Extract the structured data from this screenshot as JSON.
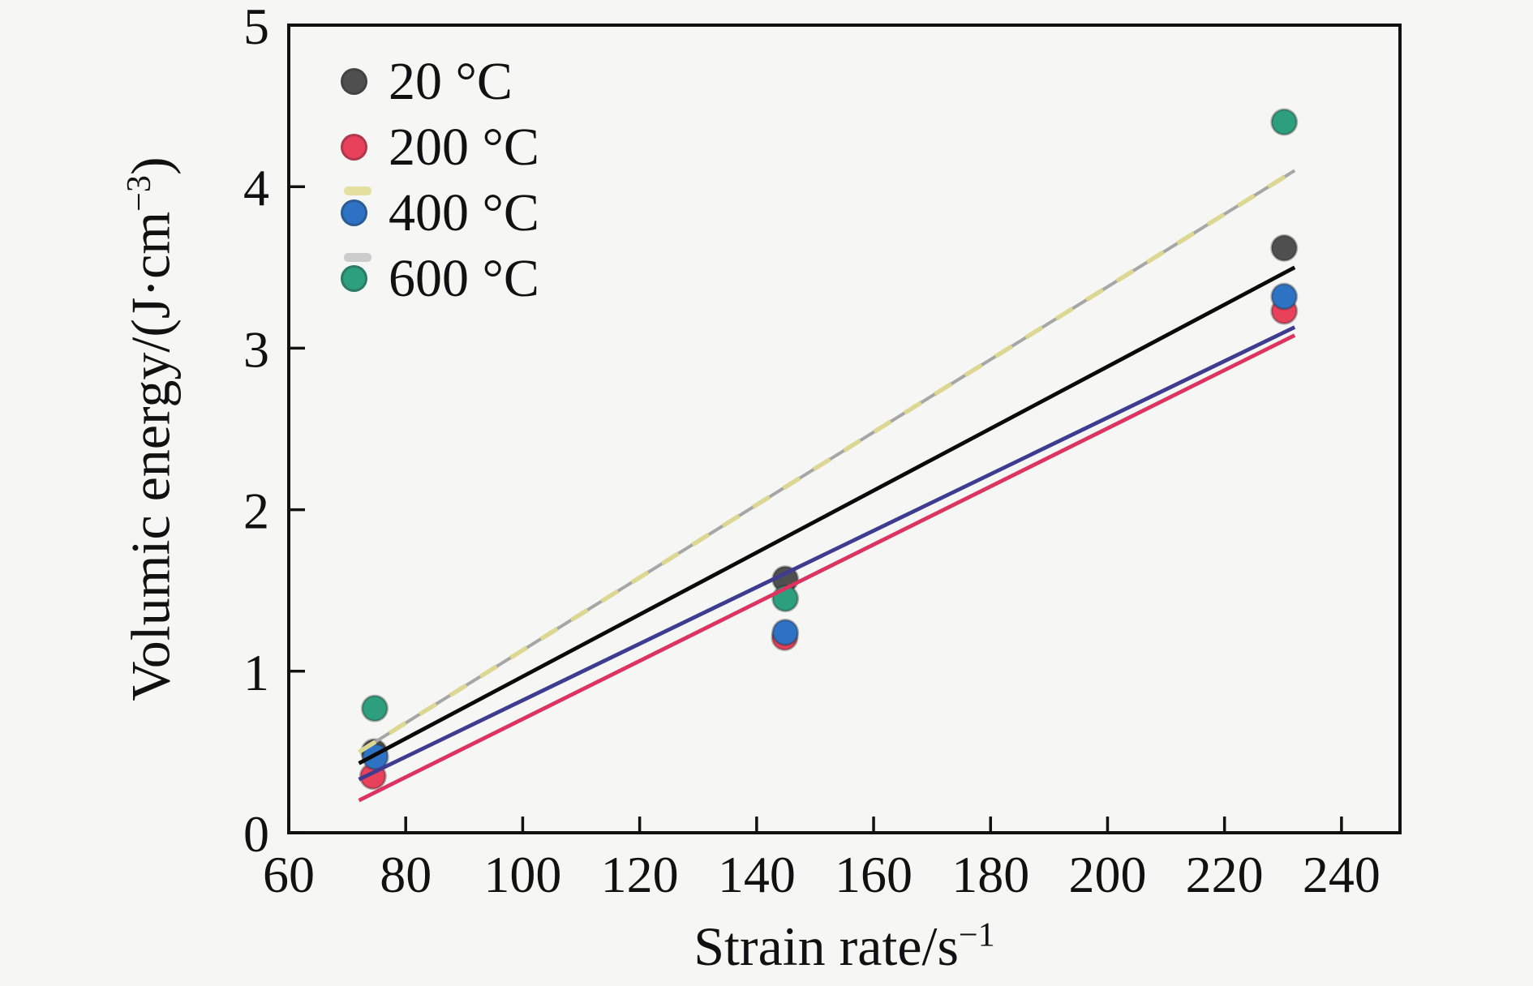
{
  "figure": {
    "background_color": "#f6f6f4",
    "frame_color": "#111111"
  },
  "chart_data": {
    "type": "scatter",
    "title": "",
    "xlabel": "Strain rate/s−1",
    "ylabel": "Volumic energy/(J·cm−3)",
    "xlabel_parts": {
      "base": "Strain rate/s",
      "sup": "−1"
    },
    "ylabel_parts": {
      "base": "Volumic energy/(J·cm",
      "sup": "−3",
      "close": ")"
    },
    "xlim": [
      60,
      250
    ],
    "ylim": [
      0,
      5
    ],
    "xticks": [
      60,
      80,
      100,
      120,
      140,
      160,
      180,
      200,
      220,
      240
    ],
    "yticks": [
      0,
      1,
      2,
      3,
      4,
      5
    ],
    "grid": false,
    "legend_position": "upper-left",
    "series": [
      {
        "name": "20 °C",
        "marker_color": "#4f4f4f",
        "points": [
          {
            "x": 74.6,
            "y": 0.5
          },
          {
            "x": 144.9,
            "y": 1.57
          },
          {
            "x": 230.2,
            "y": 3.62
          }
        ],
        "fit": {
          "x1": 72,
          "y1": 0.43,
          "x2": 232,
          "y2": 3.5,
          "color": "#0a0a0a",
          "style": "solid"
        }
      },
      {
        "name": "200 °C",
        "marker_color": "#e8415c",
        "points": [
          {
            "x": 74.4,
            "y": 0.35
          },
          {
            "x": 144.8,
            "y": 1.21
          },
          {
            "x": 230.2,
            "y": 3.23
          }
        ],
        "fit": {
          "x1": 72,
          "y1": 0.2,
          "x2": 232,
          "y2": 3.08,
          "color": "#dd3360",
          "style": "solid"
        }
      },
      {
        "name": "400 °C",
        "marker_color": "#2e72c4",
        "points": [
          {
            "x": 74.8,
            "y": 0.47
          },
          {
            "x": 144.9,
            "y": 1.24
          },
          {
            "x": 230.2,
            "y": 3.32
          }
        ],
        "fit": {
          "x1": 72,
          "y1": 0.33,
          "x2": 232,
          "y2": 3.13,
          "color": "#3d3c90",
          "style": "solid"
        }
      },
      {
        "name": "600 °C",
        "marker_color": "#2e9f7e",
        "points": [
          {
            "x": 74.7,
            "y": 0.77
          },
          {
            "x": 144.9,
            "y": 1.45
          },
          {
            "x": 230.2,
            "y": 4.4
          }
        ],
        "fit": {
          "x1": 72,
          "y1": 0.5,
          "x2": 232,
          "y2": 4.1,
          "color": "#dcd894",
          "underlay_color": "#a6a6a6",
          "style": "dashed"
        }
      }
    ]
  },
  "legend_artifacts": {
    "khaki_dash_color": "#e3e0a0",
    "gray_dash_color": "#cccccc"
  }
}
